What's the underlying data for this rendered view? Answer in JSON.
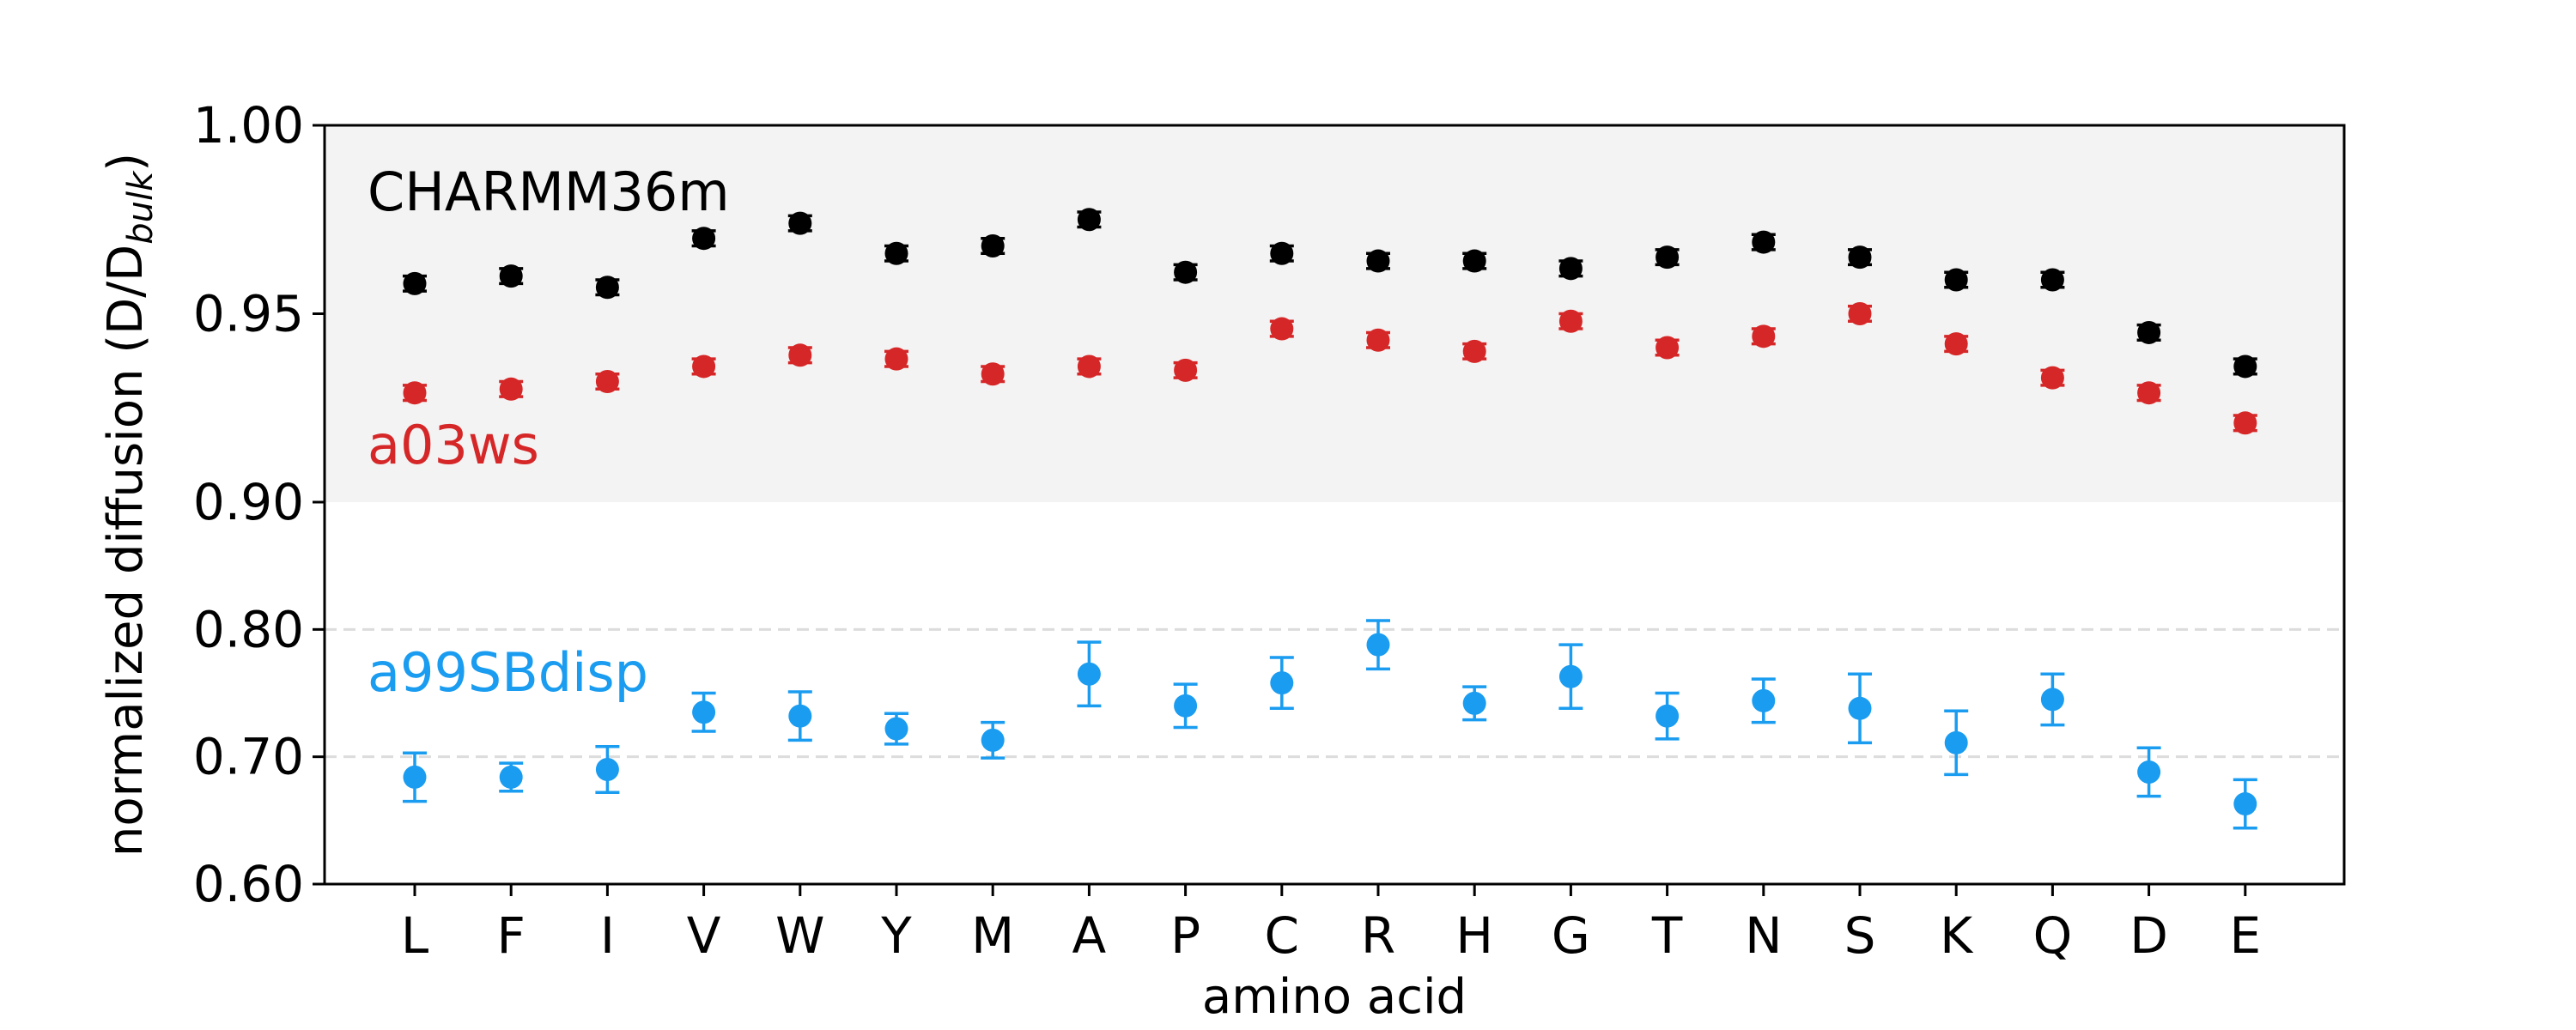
{
  "chart_data": {
    "type": "scatter",
    "xlabel": "amino acid",
    "ylabel": "normalized diffusion (D/D",
    "ylabel_sub": "bulk",
    "ylabel_close": ")",
    "categories": [
      "L",
      "F",
      "I",
      "V",
      "W",
      "Y",
      "M",
      "A",
      "P",
      "C",
      "R",
      "H",
      "G",
      "T",
      "N",
      "S",
      "K",
      "Q",
      "D",
      "E"
    ],
    "y_axis_upper": {
      "range": [
        0.9,
        1.0
      ],
      "ticks": [
        "0.90",
        "0.95",
        "1.00"
      ],
      "tick_values": [
        0.9,
        0.95,
        1.0
      ],
      "shaded": true
    },
    "y_axis_lower": {
      "range": [
        0.6,
        0.9
      ],
      "ticks": [
        "0.60",
        "0.70",
        "0.80"
      ],
      "tick_values": [
        0.6,
        0.7,
        0.8
      ],
      "dashed_gridlines": [
        0.7,
        0.8
      ]
    },
    "series": [
      {
        "name": "CHARMM36m",
        "color": "#000000",
        "values": [
          0.958,
          0.96,
          0.957,
          0.97,
          0.974,
          0.966,
          0.968,
          0.975,
          0.961,
          0.966,
          0.964,
          0.964,
          0.962,
          0.965,
          0.969,
          0.965,
          0.959,
          0.959,
          0.945,
          0.936
        ],
        "errors": [
          0.002,
          0.002,
          0.002,
          0.002,
          0.002,
          0.002,
          0.002,
          0.002,
          0.002,
          0.002,
          0.002,
          0.002,
          0.002,
          0.002,
          0.002,
          0.002,
          0.002,
          0.002,
          0.002,
          0.002
        ]
      },
      {
        "name": "a03ws",
        "color": "#d62728",
        "values": [
          0.929,
          0.93,
          0.932,
          0.936,
          0.939,
          0.938,
          0.934,
          0.936,
          0.935,
          0.946,
          0.943,
          0.94,
          0.948,
          0.941,
          0.944,
          0.95,
          0.942,
          0.933,
          0.929,
          0.921
        ],
        "errors": [
          0.002,
          0.002,
          0.002,
          0.002,
          0.002,
          0.002,
          0.002,
          0.002,
          0.002,
          0.002,
          0.002,
          0.002,
          0.002,
          0.002,
          0.002,
          0.002,
          0.002,
          0.002,
          0.002,
          0.002
        ]
      },
      {
        "name": "a99SBdisp",
        "color": "#1a9cf0",
        "values": [
          0.684,
          0.684,
          0.69,
          0.735,
          0.732,
          0.722,
          0.713,
          0.765,
          0.74,
          0.758,
          0.788,
          0.742,
          0.763,
          0.732,
          0.744,
          0.738,
          0.711,
          0.745,
          0.688,
          0.663
        ],
        "errors": [
          0.019,
          0.011,
          0.018,
          0.015,
          0.019,
          0.012,
          0.014,
          0.025,
          0.017,
          0.02,
          0.019,
          0.013,
          0.025,
          0.018,
          0.017,
          0.027,
          0.025,
          0.02,
          0.019,
          0.019
        ]
      }
    ]
  }
}
